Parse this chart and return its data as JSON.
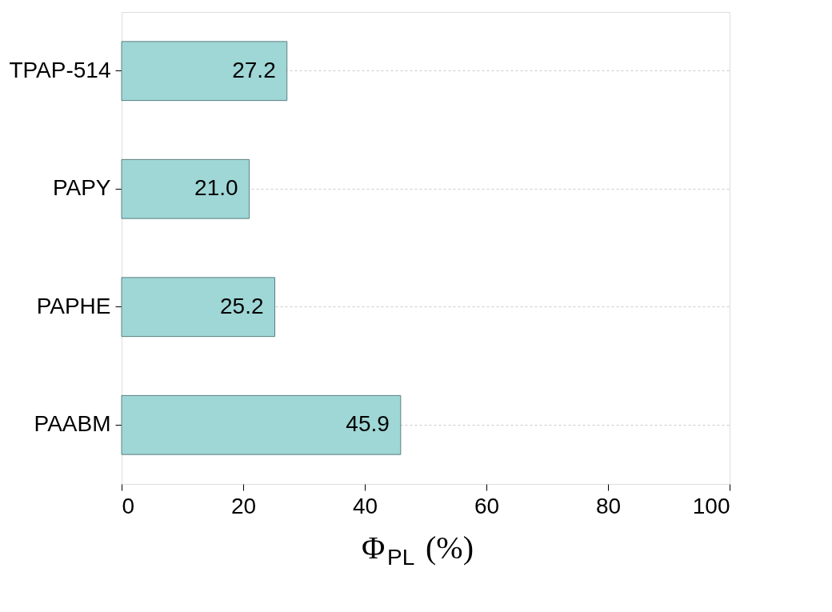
{
  "chart_data": {
    "type": "bar",
    "orientation": "horizontal",
    "categories": [
      "TPAP-514",
      "PAPY",
      "PAPHE",
      "PAABM"
    ],
    "values": [
      27.2,
      21.0,
      25.2,
      45.9
    ],
    "value_labels": [
      "27.2",
      "21.0",
      "25.2",
      "45.9"
    ],
    "color": "#9fd6d6",
    "xlim": [
      0,
      100
    ],
    "xticks": [
      0,
      20,
      40,
      60,
      80,
      100
    ],
    "xlabel": "Φ$_{PL}$ (%)",
    "grid": "y"
  }
}
